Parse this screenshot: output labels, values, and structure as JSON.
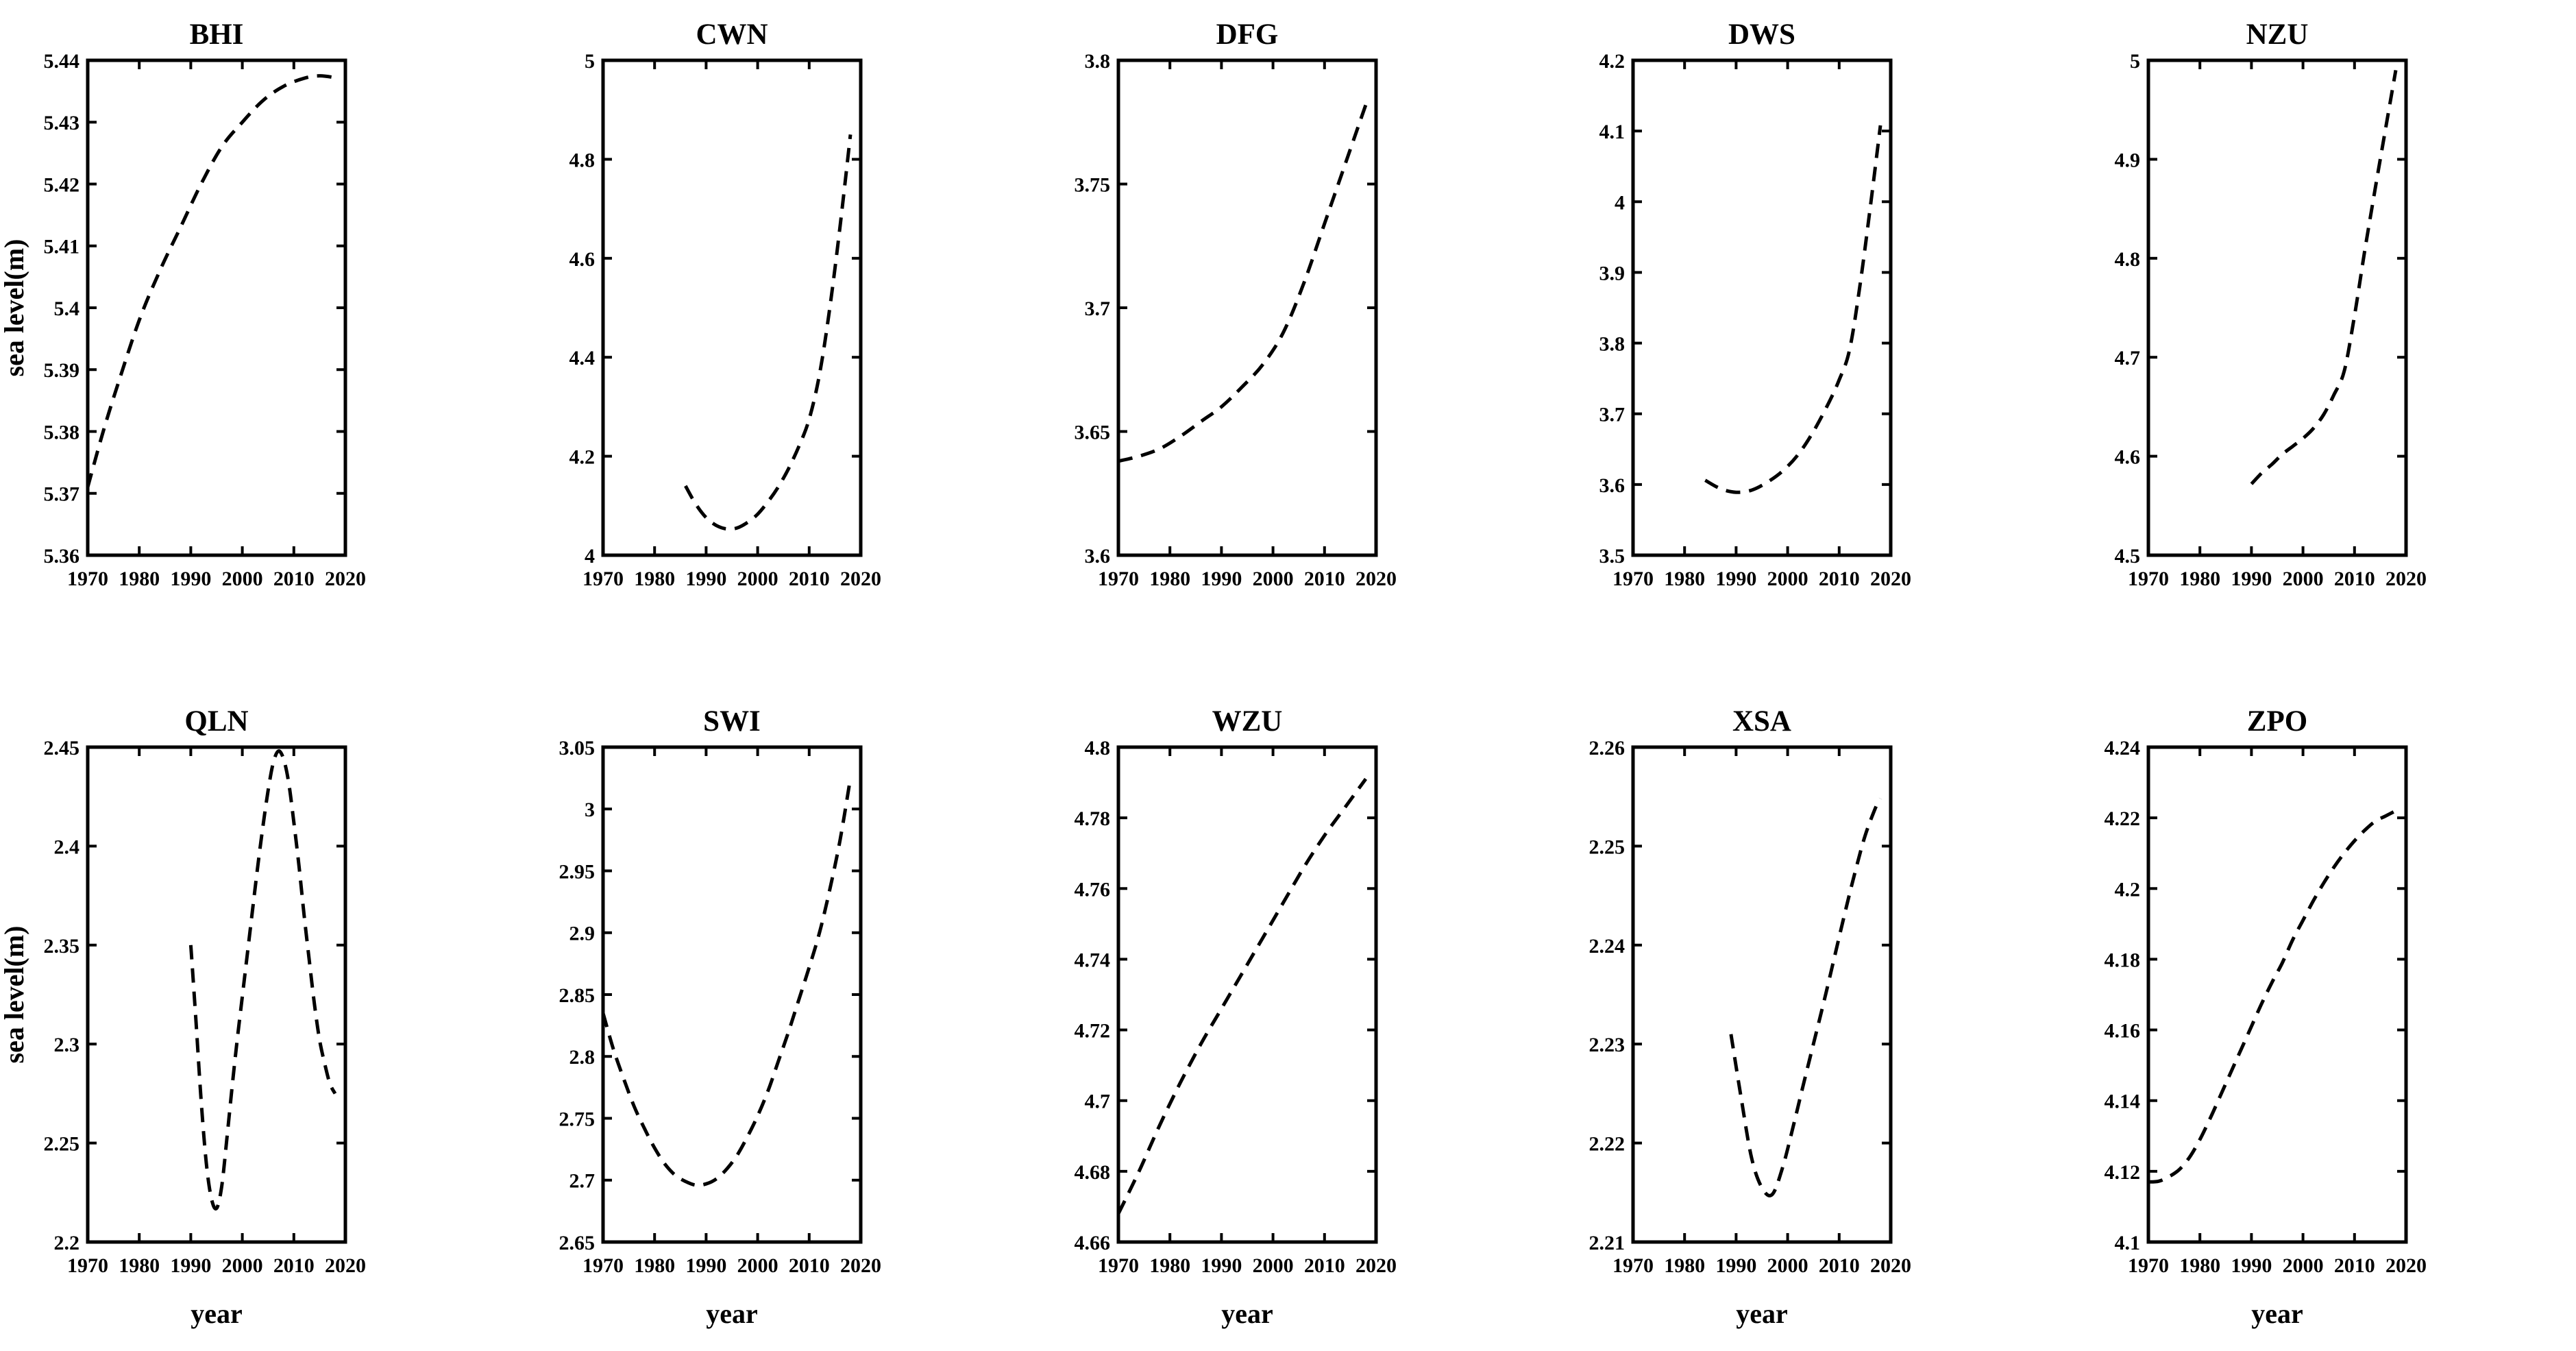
{
  "figure": {
    "ylabel": "sea level(m)",
    "xlabel": "year",
    "line_color": "#000000",
    "background_color": "#ffffff",
    "line_style": "dashed"
  },
  "chart_data": [
    {
      "type": "line",
      "title": "BHI",
      "row": 0,
      "col": 0,
      "show_ylabel": true,
      "show_xlabel": false,
      "grid": false,
      "legend": "none",
      "xlabel": "",
      "ylabel": "sea level(m)",
      "xlim": [
        1970,
        2020
      ],
      "ylim": [
        5.36,
        5.44
      ],
      "xticks": [
        1970,
        1980,
        1990,
        2000,
        2010,
        2020
      ],
      "xtick_labels": [
        "1970",
        "1980",
        "1990",
        "2000",
        "2010",
        "2020"
      ],
      "yticks": [
        5.36,
        5.37,
        5.38,
        5.39,
        5.4,
        5.41,
        5.42,
        5.43,
        5.44
      ],
      "ytick_labels": [
        "5.36",
        "5.37",
        "5.38",
        "5.39",
        "5.4",
        "5.41",
        "5.42",
        "5.43",
        "5.44"
      ],
      "x": [
        1970,
        1973,
        1976,
        1980,
        1984,
        1988,
        1992,
        1996,
        2000,
        2004,
        2008,
        2012,
        2015,
        2018
      ],
      "y": [
        5.371,
        5.38,
        5.388,
        5.398,
        5.406,
        5.413,
        5.42,
        5.426,
        5.43,
        5.4335,
        5.4358,
        5.4371,
        5.4375,
        5.4372
      ]
    },
    {
      "type": "line",
      "title": "CWN",
      "row": 0,
      "col": 1,
      "show_ylabel": false,
      "show_xlabel": false,
      "grid": false,
      "legend": "none",
      "xlabel": "",
      "ylabel": "",
      "xlim": [
        1970,
        2020
      ],
      "ylim": [
        4.0,
        5.0
      ],
      "xticks": [
        1970,
        1980,
        1990,
        2000,
        2010,
        2020
      ],
      "xtick_labels": [
        "1970",
        "1980",
        "1990",
        "2000",
        "2010",
        "2020"
      ],
      "yticks": [
        4.0,
        4.2,
        4.4,
        4.6,
        4.8,
        5.0
      ],
      "ytick_labels": [
        "4",
        "4.2",
        "4.4",
        "4.6",
        "4.8",
        "5"
      ],
      "x": [
        1986,
        1988,
        1990,
        1992,
        1994,
        1996,
        1998,
        2000,
        2002,
        2004,
        2006,
        2008,
        2010,
        2012,
        2014,
        2016,
        2018
      ],
      "y": [
        4.14,
        4.103,
        4.076,
        4.06,
        4.053,
        4.055,
        4.066,
        4.083,
        4.108,
        4.138,
        4.175,
        4.22,
        4.275,
        4.365,
        4.5,
        4.665,
        4.85
      ]
    },
    {
      "type": "line",
      "title": "DFG",
      "row": 0,
      "col": 2,
      "show_ylabel": false,
      "show_xlabel": false,
      "grid": false,
      "legend": "none",
      "xlabel": "",
      "ylabel": "",
      "xlim": [
        1970,
        2020
      ],
      "ylim": [
        3.6,
        3.8
      ],
      "xticks": [
        1970,
        1980,
        1990,
        2000,
        2010,
        2020
      ],
      "xtick_labels": [
        "1970",
        "1980",
        "1990",
        "2000",
        "2010",
        "2020"
      ],
      "yticks": [
        3.6,
        3.65,
        3.7,
        3.75,
        3.8
      ],
      "ytick_labels": [
        "3.6",
        "3.65",
        "3.7",
        "3.75",
        "3.8"
      ],
      "x": [
        1970,
        1974,
        1978,
        1982,
        1986,
        1990,
        1994,
        1998,
        2002,
        2006,
        2010,
        2014,
        2018
      ],
      "y": [
        3.638,
        3.64,
        3.643,
        3.648,
        3.654,
        3.66,
        3.668,
        3.677,
        3.69,
        3.71,
        3.734,
        3.758,
        3.782
      ]
    },
    {
      "type": "line",
      "title": "DWS",
      "row": 0,
      "col": 3,
      "show_ylabel": false,
      "show_xlabel": false,
      "grid": false,
      "legend": "none",
      "xlabel": "",
      "ylabel": "",
      "xlim": [
        1970,
        2020
      ],
      "ylim": [
        3.5,
        4.2
      ],
      "xticks": [
        1970,
        1980,
        1990,
        2000,
        2010,
        2020
      ],
      "xtick_labels": [
        "1970",
        "1980",
        "1990",
        "2000",
        "2010",
        "2020"
      ],
      "yticks": [
        3.5,
        3.6,
        3.7,
        3.8,
        3.9,
        4.0,
        4.1,
        4.2
      ],
      "ytick_labels": [
        "3.5",
        "3.6",
        "3.7",
        "3.8",
        "3.9",
        "4",
        "4.1",
        "4.2"
      ],
      "x": [
        1984,
        1987,
        1990,
        1993,
        1996,
        1999,
        2002,
        2005,
        2008,
        2010,
        2012,
        2014,
        2016,
        2018
      ],
      "y": [
        3.606,
        3.594,
        3.589,
        3.592,
        3.603,
        3.619,
        3.642,
        3.675,
        3.716,
        3.748,
        3.79,
        3.88,
        3.99,
        4.108
      ]
    },
    {
      "type": "line",
      "title": "NZU",
      "row": 0,
      "col": 4,
      "show_ylabel": false,
      "show_xlabel": false,
      "grid": false,
      "legend": "none",
      "xlabel": "",
      "ylabel": "",
      "xlim": [
        1970,
        2020
      ],
      "ylim": [
        4.5,
        5.0
      ],
      "xticks": [
        1970,
        1980,
        1990,
        2000,
        2010,
        2020
      ],
      "xtick_labels": [
        "1970",
        "1980",
        "1990",
        "2000",
        "2010",
        "2020"
      ],
      "yticks": [
        4.5,
        4.6,
        4.7,
        4.8,
        4.9,
        5.0
      ],
      "ytick_labels": [
        "4.5",
        "4.6",
        "4.7",
        "4.8",
        "4.9",
        "5"
      ],
      "x": [
        1990,
        1992,
        1994,
        1996,
        1998,
        2000,
        2002,
        2004,
        2006,
        2008,
        2010,
        2012,
        2014,
        2016,
        2018
      ],
      "y": [
        4.572,
        4.583,
        4.592,
        4.602,
        4.61,
        4.618,
        4.628,
        4.642,
        4.662,
        4.686,
        4.742,
        4.808,
        4.87,
        4.93,
        4.99
      ]
    },
    {
      "type": "line",
      "title": "QLN",
      "row": 1,
      "col": 0,
      "show_ylabel": true,
      "show_xlabel": true,
      "grid": false,
      "legend": "none",
      "xlabel": "year",
      "ylabel": "sea level(m)",
      "xlim": [
        1970,
        2020
      ],
      "ylim": [
        2.2,
        2.45
      ],
      "xticks": [
        1970,
        1980,
        1990,
        2000,
        2010,
        2020
      ],
      "xtick_labels": [
        "1970",
        "1980",
        "1990",
        "2000",
        "2010",
        "2020"
      ],
      "yticks": [
        2.2,
        2.25,
        2.3,
        2.35,
        2.4,
        2.45
      ],
      "ytick_labels": [
        "2.2",
        "2.25",
        "2.3",
        "2.35",
        "2.4",
        "2.45"
      ],
      "x": [
        1990,
        1991,
        1992,
        1993,
        1994,
        1995,
        1996,
        1997,
        1998,
        1999,
        2000,
        2001,
        2002,
        2003,
        2004,
        2005,
        2006,
        2007,
        2008,
        2009,
        2010,
        2011,
        2012,
        2013,
        2014,
        2015,
        2016,
        2017,
        2018
      ],
      "y": [
        2.35,
        2.312,
        2.272,
        2.24,
        2.222,
        2.217,
        2.228,
        2.252,
        2.278,
        2.302,
        2.324,
        2.346,
        2.368,
        2.39,
        2.41,
        2.428,
        2.442,
        2.448,
        2.444,
        2.432,
        2.412,
        2.39,
        2.365,
        2.342,
        2.32,
        2.302,
        2.29,
        2.28,
        2.275
      ]
    },
    {
      "type": "line",
      "title": "SWI",
      "row": 1,
      "col": 1,
      "show_ylabel": false,
      "show_xlabel": true,
      "grid": false,
      "legend": "none",
      "xlabel": "year",
      "ylabel": "",
      "xlim": [
        1970,
        2020
      ],
      "ylim": [
        2.65,
        3.05
      ],
      "xticks": [
        1970,
        1980,
        1990,
        2000,
        2010,
        2020
      ],
      "xtick_labels": [
        "1970",
        "1980",
        "1990",
        "2000",
        "2010",
        "2020"
      ],
      "yticks": [
        2.65,
        2.7,
        2.75,
        2.8,
        2.85,
        2.9,
        2.95,
        3.0,
        3.05
      ],
      "ytick_labels": [
        "2.65",
        "2.7",
        "2.75",
        "2.8",
        "2.85",
        "2.9",
        "2.95",
        "3",
        "3.05"
      ],
      "x": [
        1970,
        1972,
        1974,
        1976,
        1978,
        1980,
        1982,
        1984,
        1986,
        1988,
        1990,
        1992,
        1994,
        1996,
        1998,
        2000,
        2002,
        2004,
        2006,
        2008,
        2010,
        2012,
        2014,
        2016,
        2018
      ],
      "y": [
        2.835,
        2.806,
        2.782,
        2.76,
        2.742,
        2.726,
        2.713,
        2.704,
        2.699,
        2.696,
        2.697,
        2.701,
        2.709,
        2.72,
        2.735,
        2.752,
        2.772,
        2.796,
        2.82,
        2.846,
        2.872,
        2.9,
        2.935,
        2.975,
        3.025
      ]
    },
    {
      "type": "line",
      "title": "WZU",
      "row": 1,
      "col": 2,
      "show_ylabel": false,
      "show_xlabel": true,
      "grid": false,
      "legend": "none",
      "xlabel": "year",
      "ylabel": "",
      "xlim": [
        1970,
        2020
      ],
      "ylim": [
        4.66,
        4.8
      ],
      "xticks": [
        1970,
        1980,
        1990,
        2000,
        2010,
        2020
      ],
      "xtick_labels": [
        "1970",
        "1980",
        "1990",
        "2000",
        "2010",
        "2020"
      ],
      "yticks": [
        4.66,
        4.68,
        4.7,
        4.72,
        4.74,
        4.76,
        4.78,
        4.8
      ],
      "ytick_labels": [
        "4.66",
        "4.68",
        "4.7",
        "4.72",
        "4.74",
        "4.76",
        "4.78",
        "4.8"
      ],
      "x": [
        1970,
        1974,
        1978,
        1982,
        1986,
        1990,
        1994,
        1998,
        2002,
        2006,
        2010,
        2014,
        2018
      ],
      "y": [
        4.668,
        4.68,
        4.693,
        4.705,
        4.716,
        4.726,
        4.736,
        4.746,
        4.756,
        4.766,
        4.775,
        4.783,
        4.791
      ]
    },
    {
      "type": "line",
      "title": "XSA",
      "row": 1,
      "col": 3,
      "show_ylabel": false,
      "show_xlabel": true,
      "grid": false,
      "legend": "none",
      "xlabel": "year",
      "ylabel": "",
      "xlim": [
        1970,
        2020
      ],
      "ylim": [
        2.21,
        2.26
      ],
      "xticks": [
        1970,
        1980,
        1990,
        2000,
        2010,
        2020
      ],
      "xtick_labels": [
        "1970",
        "1980",
        "1990",
        "2000",
        "2010",
        "2020"
      ],
      "yticks": [
        2.21,
        2.22,
        2.23,
        2.24,
        2.25,
        2.26
      ],
      "ytick_labels": [
        "2.21",
        "2.22",
        "2.23",
        "2.24",
        "2.25",
        "2.26"
      ],
      "x": [
        1989,
        1991,
        1993,
        1995,
        1997,
        1999,
        2001,
        2003,
        2005,
        2007,
        2009,
        2011,
        2013,
        2015,
        2017,
        2018
      ],
      "y": [
        2.231,
        2.2245,
        2.2185,
        2.2155,
        2.2148,
        2.2175,
        2.2215,
        2.2258,
        2.23,
        2.2342,
        2.2386,
        2.243,
        2.2472,
        2.251,
        2.2538,
        2.2548
      ]
    },
    {
      "type": "line",
      "title": "ZPO",
      "row": 1,
      "col": 4,
      "show_ylabel": false,
      "show_xlabel": true,
      "grid": false,
      "legend": "none",
      "xlabel": "year",
      "ylabel": "",
      "xlim": [
        1970,
        2020
      ],
      "ylim": [
        4.1,
        4.24
      ],
      "xticks": [
        1970,
        1980,
        1990,
        2000,
        2010,
        2020
      ],
      "xtick_labels": [
        "1970",
        "1980",
        "1990",
        "2000",
        "2010",
        "2020"
      ],
      "yticks": [
        4.1,
        4.12,
        4.14,
        4.16,
        4.18,
        4.2,
        4.22,
        4.24
      ],
      "ytick_labels": [
        "4.1",
        "4.12",
        "4.14",
        "4.16",
        "4.18",
        "4.2",
        "4.22",
        "4.24"
      ],
      "x": [
        1970,
        1972,
        1974,
        1976,
        1978,
        1980,
        1982,
        1984,
        1986,
        1988,
        1990,
        1992,
        1994,
        1996,
        1998,
        2000,
        2002,
        2004,
        2006,
        2008,
        2010,
        2012,
        2014,
        2016,
        2018
      ],
      "y": [
        4.117,
        4.1172,
        4.1185,
        4.1205,
        4.124,
        4.129,
        4.135,
        4.1415,
        4.148,
        4.1545,
        4.161,
        4.1675,
        4.1735,
        4.179,
        4.1855,
        4.191,
        4.1965,
        4.2015,
        4.206,
        4.21,
        4.2135,
        4.2165,
        4.219,
        4.2205,
        4.222
      ]
    }
  ]
}
